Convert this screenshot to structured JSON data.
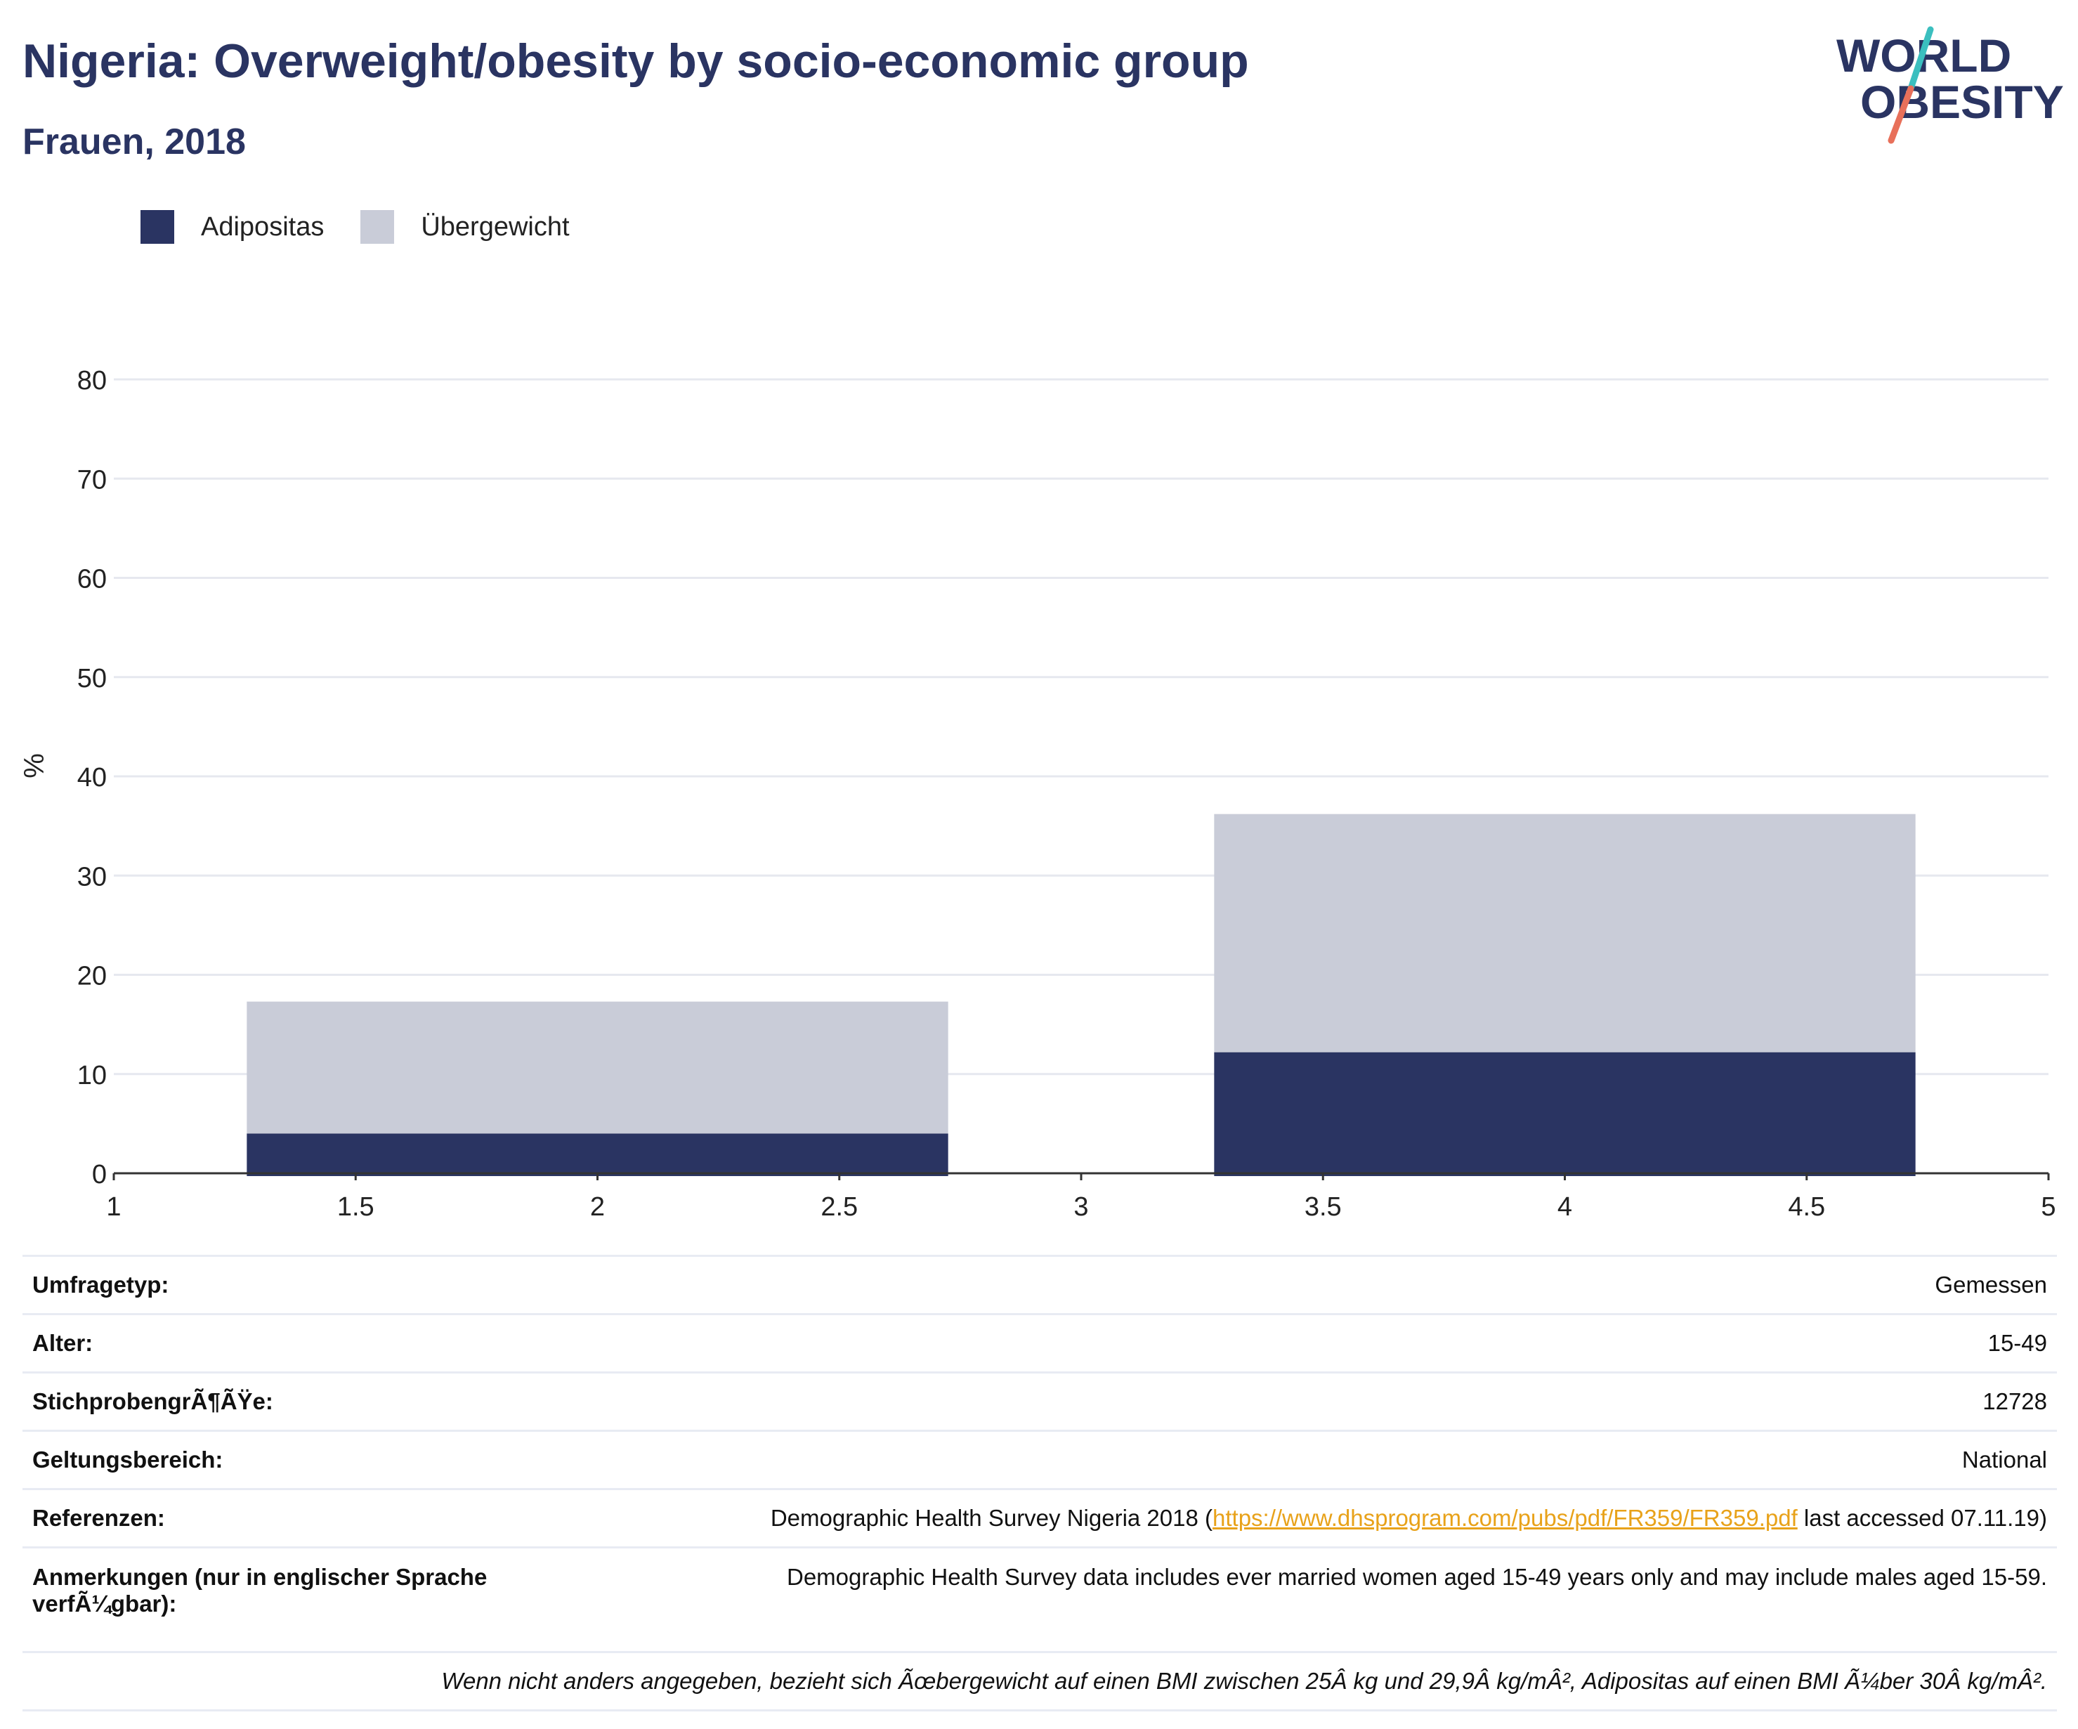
{
  "title": "Nigeria: Overweight/obesity by socio-economic group",
  "subtitle": "Frauen, 2018",
  "logo": {
    "line1": "WORLD",
    "line2": "OBESITY",
    "accent1": "#3bbfbf",
    "accent2": "#e8705a"
  },
  "legend": [
    {
      "label": "Adipositas",
      "color": "#2a3462"
    },
    {
      "label": "Übergewicht",
      "color": "#c9ccd8"
    }
  ],
  "chart_data": {
    "type": "bar",
    "stacked": true,
    "ylabel": "%",
    "xlabel": "",
    "xlim": [
      1,
      5
    ],
    "ylim": [
      0,
      80
    ],
    "xticks": [
      "1",
      "1.5",
      "2",
      "2.5",
      "3",
      "3.5",
      "4",
      "4.5",
      "5"
    ],
    "yticks": [
      "0",
      "10",
      "20",
      "30",
      "40",
      "50",
      "60",
      "70",
      "80"
    ],
    "grid": true,
    "legend_position": "top-left",
    "bars": [
      {
        "x": 2,
        "width": 1.45,
        "adipositas": 4,
        "uebergewicht": 13.3
      },
      {
        "x": 4,
        "width": 1.45,
        "adipositas": 12.2,
        "uebergewicht": 24
      }
    ],
    "series": [
      {
        "name": "Adipositas",
        "color": "#2a3462"
      },
      {
        "name": "Übergewicht",
        "color": "#c9ccd8"
      }
    ]
  },
  "meta": {
    "survey_type": {
      "label": "Umfragetyp:",
      "value": "Gemessen"
    },
    "age": {
      "label": "Alter:",
      "value": "15-49"
    },
    "sample": {
      "label": "StichprobengrÃ¶ÃŸe:",
      "value": "12728"
    },
    "scope": {
      "label": "Geltungsbereich:",
      "value": "National"
    },
    "references": {
      "label": "Referenzen:",
      "pre": "Demographic Health Survey Nigeria 2018 (",
      "link": "https://www.dhsprogram.com/pubs/pdf/FR359/FR359.pdf",
      "post": " last accessed 07.11.19)"
    },
    "notes": {
      "label": "Anmerkungen (nur in englischer Sprache verfÃ¼gbar):",
      "value": "Demographic Health Survey data includes ever married women aged 15-49 years only and may include males aged 15-59."
    },
    "footnote": "Wenn nicht anders angegeben, bezieht sich Ãœbergewicht auf einen BMI zwischen 25Â kg und 29,9Â kg/mÂ², Adipositas auf einen BMI Ã¼ber 30Â kg/mÂ²."
  }
}
